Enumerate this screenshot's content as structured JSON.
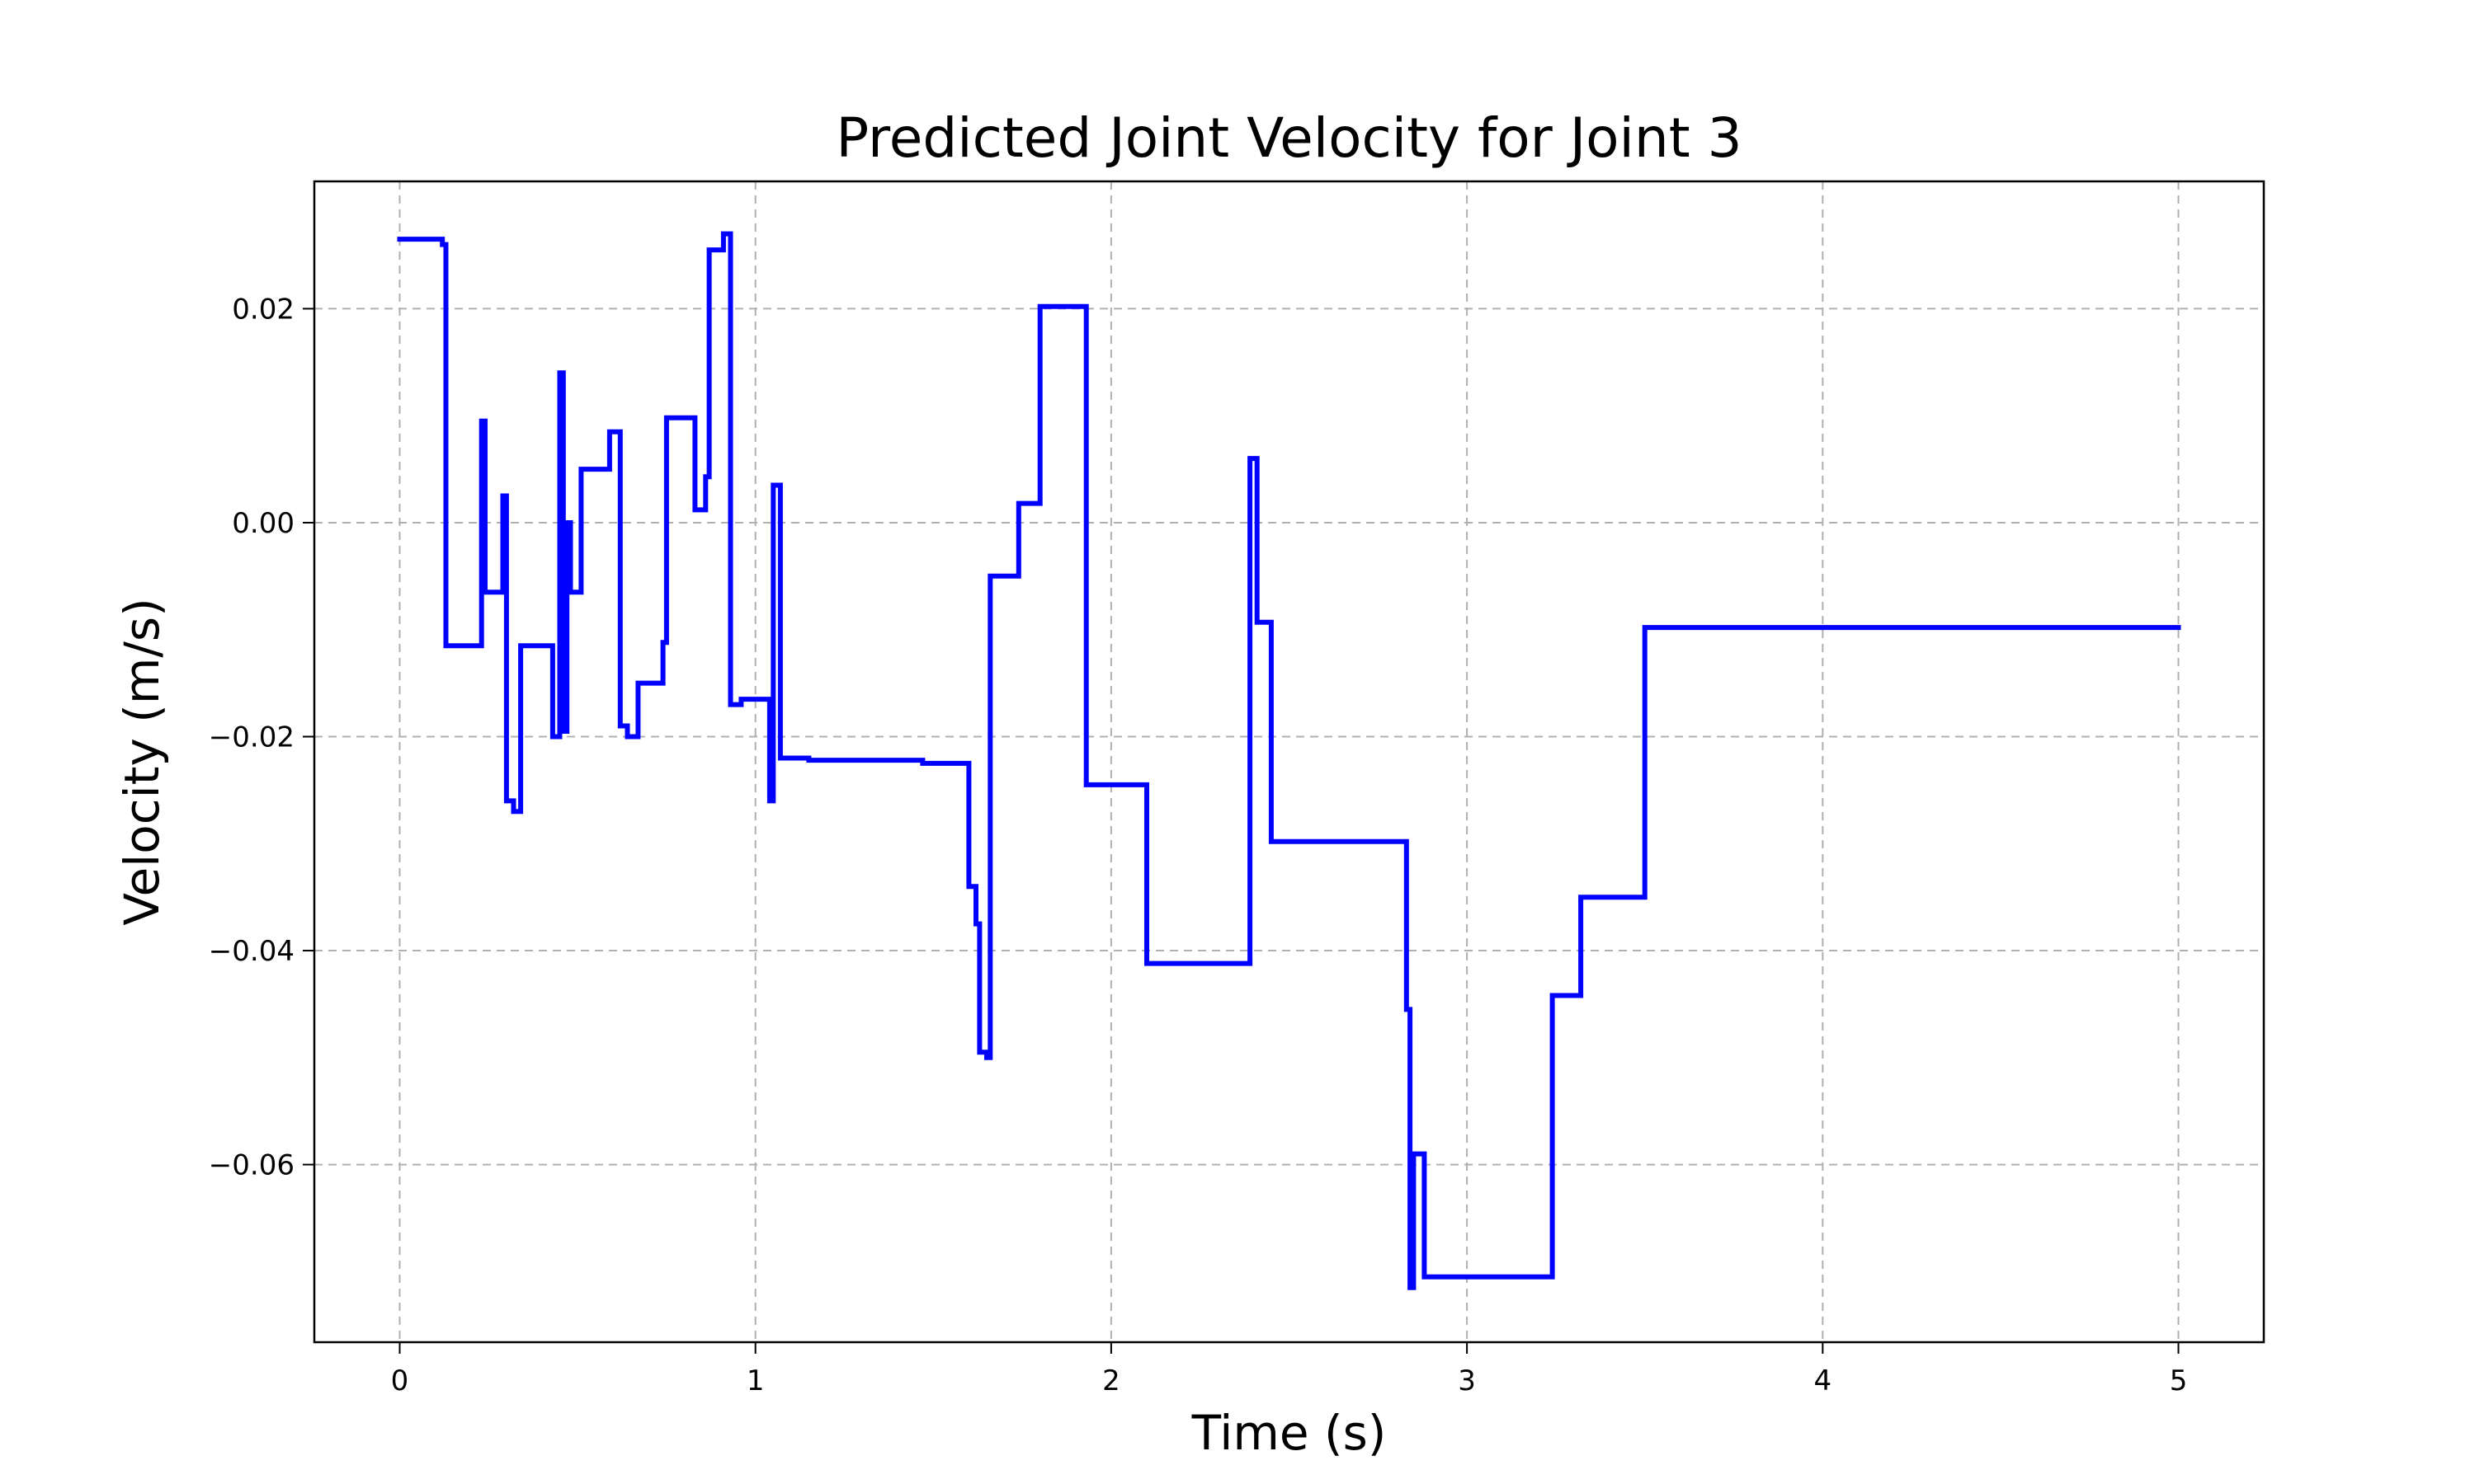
{
  "chart_data": {
    "type": "line",
    "title": "Predicted Joint Velocity for Joint 3",
    "xlabel": "Time (s)",
    "ylabel": "Velocity (m/s)",
    "xlim": [
      -0.24,
      5.24
    ],
    "ylim": [
      -0.0766,
      0.0319
    ],
    "xticks": [
      0,
      1,
      2,
      3,
      4,
      5
    ],
    "xtick_labels": [
      "0",
      "1",
      "2",
      "3",
      "4",
      "5"
    ],
    "yticks": [
      0.02,
      0.0,
      -0.02,
      -0.04,
      -0.06
    ],
    "ytick_labels": [
      "0.02",
      "0.00",
      "−0.02",
      "−0.04",
      "−0.06"
    ],
    "grid": true,
    "line_color": "#0000ff",
    "series": [
      {
        "step": "post",
        "x": [
          0.0,
          0.12,
          0.13,
          0.23,
          0.24,
          0.25,
          0.29,
          0.3,
          0.32,
          0.34,
          0.36,
          0.43,
          0.45,
          0.46,
          0.47,
          0.48,
          0.51,
          0.52,
          0.59,
          0.62,
          0.64,
          0.66,
          0.67,
          0.74,
          0.75,
          0.83,
          0.86,
          0.87,
          0.91,
          0.93,
          0.95,
          0.96,
          1.04,
          1.05,
          1.07,
          1.15,
          1.47,
          1.6,
          1.62,
          1.63,
          1.65,
          1.66,
          1.74,
          1.8,
          1.93,
          2.1,
          2.39,
          2.41,
          2.45,
          2.83,
          2.84,
          2.85,
          2.88,
          3.06,
          3.24,
          3.32,
          3.5,
          5.0
        ],
        "y": [
          0.0265,
          0.026,
          -0.0115,
          0.0095,
          -0.0065,
          -0.0065,
          0.0025,
          -0.026,
          -0.027,
          -0.0115,
          -0.0115,
          -0.02,
          0.014,
          -0.0195,
          0.0,
          -0.0065,
          0.005,
          0.005,
          0.0085,
          -0.019,
          -0.02,
          -0.02,
          -0.015,
          -0.0112,
          0.0098,
          0.0012,
          0.0043,
          0.0255,
          0.027,
          -0.017,
          -0.017,
          -0.0165,
          -0.026,
          0.0035,
          -0.022,
          -0.0222,
          -0.0225,
          -0.034,
          -0.0375,
          -0.0495,
          -0.05,
          -0.005,
          0.0018,
          0.0202,
          -0.0245,
          -0.0412,
          0.006,
          -0.0093,
          -0.0298,
          -0.0455,
          -0.0715,
          -0.059,
          -0.0705,
          -0.0705,
          -0.0442,
          -0.035,
          -0.0098,
          -0.0098
        ]
      }
    ]
  }
}
